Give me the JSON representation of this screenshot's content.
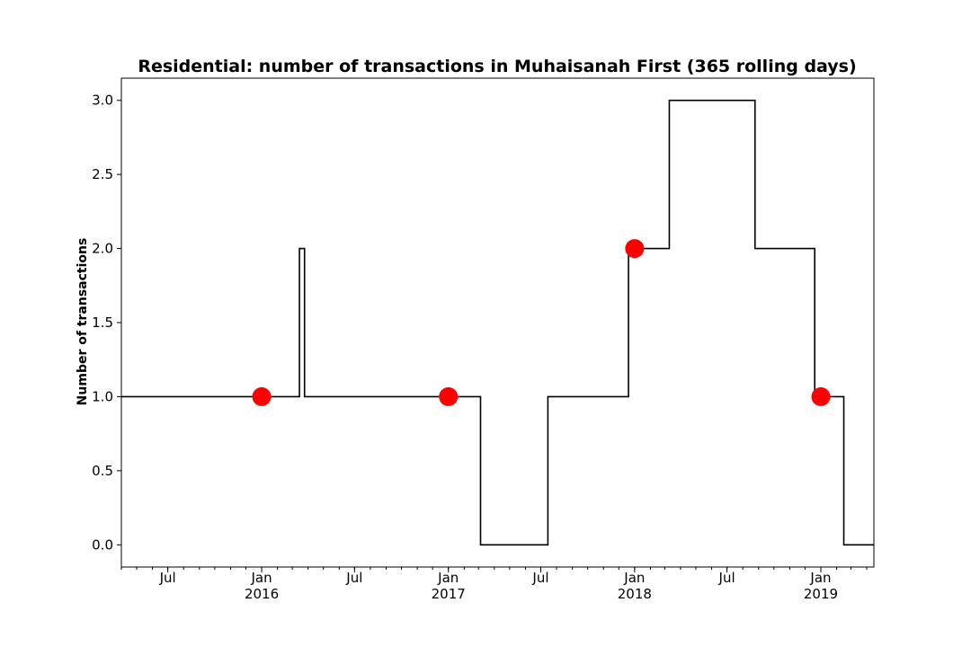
{
  "chart_data": {
    "type": "line",
    "drawstyle": "steps-post",
    "title": "Residential: number of transactions in Muhaisanah First (365 rolling days)",
    "xlabel": "",
    "ylabel": "Number of transactions",
    "xlim": [
      "2015-04-01",
      "2019-04-15"
    ],
    "ylim": [
      -0.15,
      3.15
    ],
    "yticks": [
      "0.0",
      "0.5",
      "1.0",
      "1.5",
      "2.0",
      "2.5",
      "3.0"
    ],
    "xticks_major": [
      {
        "date": "2015-07-01",
        "label": "Jul",
        "year": ""
      },
      {
        "date": "2016-01-01",
        "label": "Jan",
        "year": "2016"
      },
      {
        "date": "2016-07-01",
        "label": "Jul",
        "year": ""
      },
      {
        "date": "2017-01-01",
        "label": "Jan",
        "year": "2017"
      },
      {
        "date": "2017-07-01",
        "label": "Jul",
        "year": ""
      },
      {
        "date": "2018-01-01",
        "label": "Jan",
        "year": "2018"
      },
      {
        "date": "2018-07-01",
        "label": "Jul",
        "year": ""
      },
      {
        "date": "2019-01-01",
        "label": "Jan",
        "year": "2019"
      }
    ],
    "series": [
      {
        "color": "#000000",
        "points": [
          {
            "x": "2015-04-01",
            "y": 1
          },
          {
            "x": "2016-03-15",
            "y": 2
          },
          {
            "x": "2016-03-25",
            "y": 1
          },
          {
            "x": "2017-03-05",
            "y": 0
          },
          {
            "x": "2017-07-15",
            "y": 1
          },
          {
            "x": "2017-12-20",
            "y": 2
          },
          {
            "x": "2018-03-10",
            "y": 3
          },
          {
            "x": "2018-08-25",
            "y": 2
          },
          {
            "x": "2018-12-20",
            "y": 1
          },
          {
            "x": "2019-02-15",
            "y": 0
          },
          {
            "x": "2019-04-15",
            "y": 0
          }
        ]
      },
      {
        "kind": "markers",
        "color": "#ff0000",
        "points": [
          {
            "x": "2016-01-01",
            "y": 1
          },
          {
            "x": "2017-01-01",
            "y": 1
          },
          {
            "x": "2018-01-01",
            "y": 2
          },
          {
            "x": "2019-01-01",
            "y": 1
          }
        ]
      }
    ],
    "grid": false,
    "legend": "none"
  }
}
